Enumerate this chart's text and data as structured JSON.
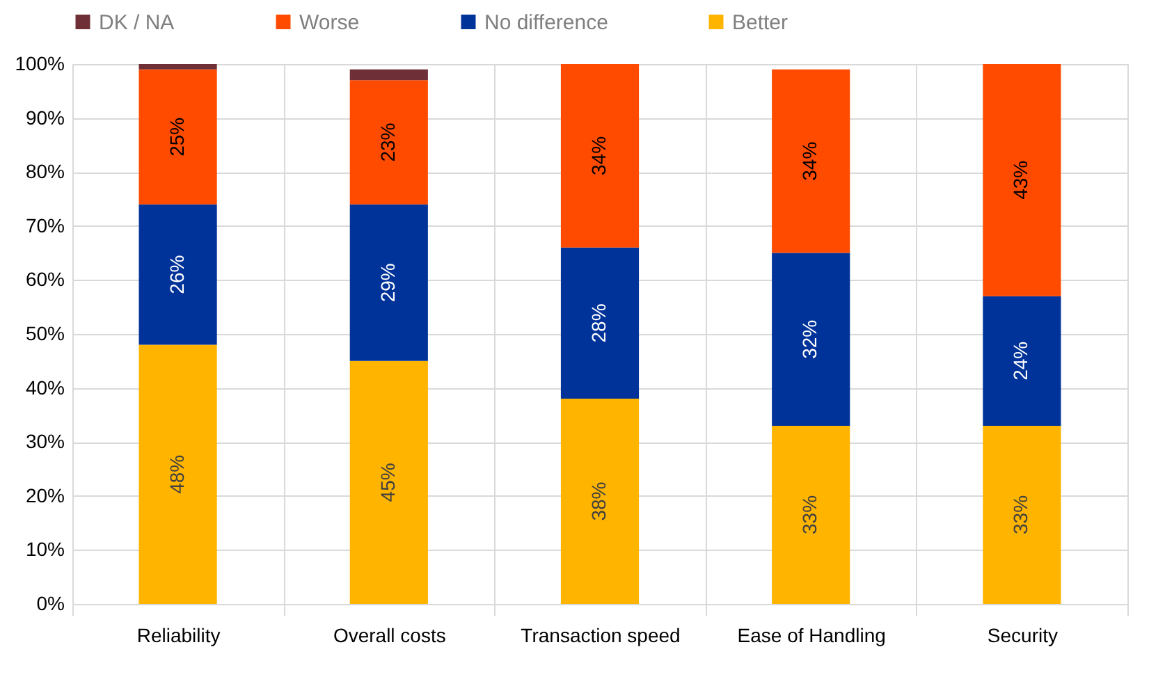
{
  "chart_data": {
    "type": "bar",
    "stacked": true,
    "categories": [
      "Reliability",
      "Overall costs",
      "Transaction speed",
      "Ease of Handling",
      "Security"
    ],
    "series": [
      {
        "name": "Better",
        "color": "#ffb400",
        "values": [
          48,
          45,
          38,
          33,
          33
        ],
        "value_labels": [
          "48%",
          "45%",
          "38%",
          "33%",
          "33%"
        ]
      },
      {
        "name": "No difference",
        "color": "#003399",
        "values": [
          26,
          29,
          28,
          32,
          24
        ],
        "value_labels": [
          "26%",
          "29%",
          "28%",
          "32%",
          "24%"
        ]
      },
      {
        "name": "Worse",
        "color": "#ff4b00",
        "values": [
          25,
          23,
          34,
          34,
          43
        ],
        "value_labels": [
          "25%",
          "23%",
          "34%",
          "34%",
          "43%"
        ]
      },
      {
        "name": "DK / NA",
        "color": "#6f2f36",
        "values": [
          1,
          2,
          null,
          null,
          null
        ]
      }
    ],
    "ylim": [
      0,
      100
    ],
    "yticks": [
      {
        "value": 0,
        "label": "0%"
      },
      {
        "value": 10,
        "label": "10%"
      },
      {
        "value": 20,
        "label": "20%"
      },
      {
        "value": 30,
        "label": "30%"
      },
      {
        "value": 40,
        "label": "40%"
      },
      {
        "value": 50,
        "label": "50%"
      },
      {
        "value": 60,
        "label": "60%"
      },
      {
        "value": 70,
        "label": "70%"
      },
      {
        "value": 80,
        "label": "80%"
      },
      {
        "value": 90,
        "label": "90%"
      },
      {
        "value": 100,
        "label": "100%"
      }
    ],
    "grid": true,
    "legend": "top"
  }
}
